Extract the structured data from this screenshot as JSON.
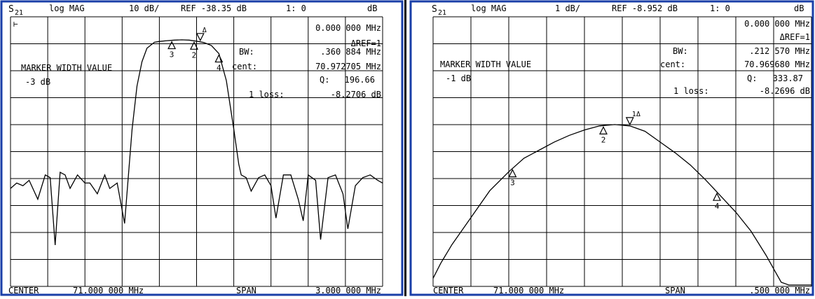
{
  "colors": {
    "frame": "#1a3fa8",
    "grid": "#000000",
    "trace": "#000000",
    "text": "#000000",
    "background": "#ffffff"
  },
  "panels": [
    {
      "header": {
        "param_main": "S",
        "param_sub": "21",
        "format": "log MAG",
        "scale": "10 dB/",
        "ref": "REF -38.35 dB",
        "channel": "1: 0",
        "unit": "dB"
      },
      "info": {
        "freq": "0.000 000 MHz",
        "delta": "ΔREF=1",
        "bw_label": "BW:",
        "bw_value": ".360 884 MHz",
        "cent_label": "cent:",
        "cent_value": "70.972705 MHz",
        "q_label": "Q:",
        "q_value": "196.66",
        "loss_label": "1 loss:",
        "loss_value": "-8.2706 dB"
      },
      "marker_width": {
        "title": "MARKER WIDTH VALUE",
        "value": "-3 dB"
      },
      "footer": {
        "center_label": "CENTER",
        "center_value": "71.000 000 MHz",
        "span_label": "SPAN",
        "span_value": "3.000 000 MHz"
      }
    },
    {
      "header": {
        "param_main": "S",
        "param_sub": "21",
        "format": "log MAG",
        "scale": "1 dB/",
        "ref": "REF -8.952 dB",
        "channel": "1: 0",
        "unit": "dB"
      },
      "info": {
        "freq": "0.000 000 MHz",
        "delta": "ΔREF=1",
        "bw_label": "BW:",
        "bw_value": ".212 570 MHz",
        "cent_label": "cent:",
        "cent_value": "70.969680 MHz",
        "q_label": "Q:",
        "q_value": "333.87",
        "loss_label": "1 loss:",
        "loss_value": "-8.2696 dB"
      },
      "marker_width": {
        "title": "MARKER WIDTH VALUE",
        "value": "-1 dB"
      },
      "footer": {
        "center_label": "CENTER",
        "center_value": "71.000 000 MHz",
        "span_label": "SPAN",
        "span_value": ".500 000 MHz"
      }
    }
  ],
  "chart_data": [
    {
      "type": "line",
      "x_unit": "MHz",
      "y_unit": "dB",
      "xlim": [
        69.5,
        72.5
      ],
      "ylim": [
        -138.35,
        -38.35
      ],
      "grid": true,
      "markers": [
        "Δ",
        "2",
        "3",
        "4"
      ],
      "series": [
        {
          "x": [
            69.5,
            69.55,
            69.6,
            69.65,
            69.72,
            69.78,
            69.82,
            69.86,
            69.9,
            69.94,
            69.98,
            70.04,
            70.1,
            70.14,
            70.2,
            70.26,
            70.3,
            70.36,
            70.42,
            70.48,
            70.52,
            70.56,
            70.6,
            70.64,
            70.66,
            70.7,
            70.76,
            70.82,
            70.88,
            70.94,
            71.0,
            71.06,
            71.12,
            71.18,
            71.24,
            71.3,
            71.34,
            71.36,
            71.4,
            71.44,
            71.5,
            71.55,
            71.6,
            71.64,
            71.7,
            71.76,
            71.82,
            71.86,
            71.9,
            71.96,
            72.0,
            72.06,
            72.12,
            72.18,
            72.22,
            72.28,
            72.34,
            72.4,
            72.46,
            72.5
          ],
          "y": [
            -102,
            -100,
            -101,
            -99,
            -106,
            -97,
            -98,
            -123,
            -96,
            -97,
            -102,
            -97,
            -100,
            -100,
            -104,
            -97,
            -102,
            -100,
            -115,
            -80,
            -64,
            -55,
            -50,
            -48.5,
            -47.8,
            -47.5,
            -47.2,
            -47.0,
            -46.9,
            -47.0,
            -47.4,
            -47.9,
            -49.0,
            -52,
            -62,
            -80,
            -93,
            -97,
            -98,
            -103,
            -98,
            -97,
            -101,
            -113,
            -97,
            -97,
            -106,
            -114,
            -97,
            -99,
            -121,
            -98,
            -97,
            -104,
            -117,
            -101,
            -98,
            -97,
            -99,
            -100
          ]
        }
      ]
    },
    {
      "type": "line",
      "x_unit": "MHz",
      "y_unit": "dB",
      "xlim": [
        70.75,
        71.25
      ],
      "ylim": [
        -18.952,
        -8.952
      ],
      "grid": true,
      "markers": [
        "1Δ",
        "2",
        "3",
        "4"
      ],
      "series": [
        {
          "x": [
            70.75,
            70.76,
            70.775,
            70.8,
            70.825,
            70.85,
            70.87,
            70.89,
            70.91,
            70.93,
            70.95,
            70.97,
            70.99,
            71.01,
            71.03,
            71.05,
            71.07,
            71.09,
            71.11,
            71.13,
            71.15,
            71.17,
            71.19,
            71.2,
            71.21,
            71.22,
            71.25
          ],
          "y": [
            -18.65,
            -18.1,
            -17.4,
            -16.4,
            -15.4,
            -14.7,
            -14.2,
            -13.9,
            -13.6,
            -13.35,
            -13.15,
            -13.0,
            -12.95,
            -13.0,
            -13.2,
            -13.6,
            -14.0,
            -14.45,
            -15.0,
            -15.6,
            -16.2,
            -16.9,
            -17.8,
            -18.3,
            -18.8,
            -18.9,
            -18.9
          ]
        }
      ]
    }
  ]
}
